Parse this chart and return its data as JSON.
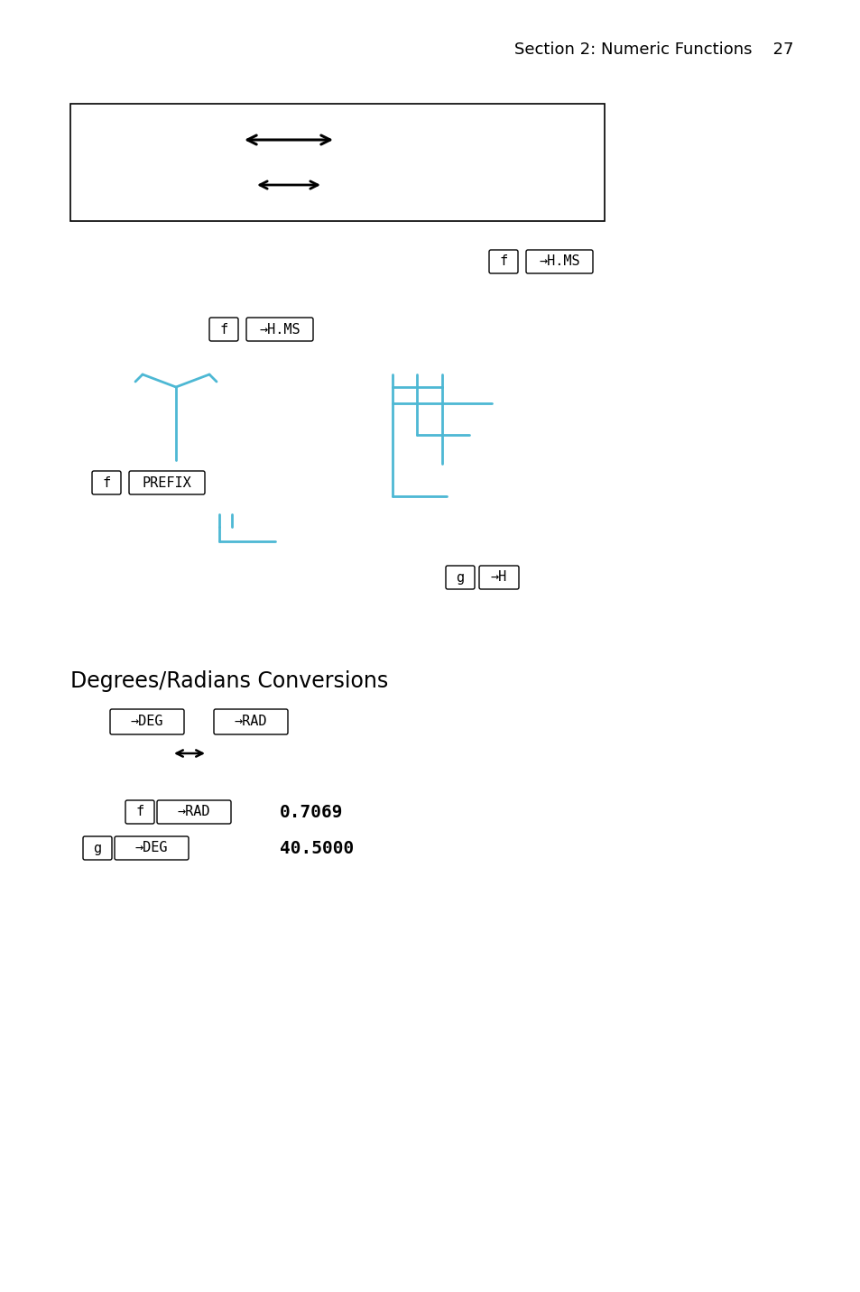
{
  "bg_color": "#ffffff",
  "page_header": "Section 2: Numeric Functions    27",
  "header_fontsize": 13,
  "cyan_color": "#4db8d4",
  "title_section": "Degrees/Radians Conversions",
  "title_fontsize": 17,
  "val1": "0.7069",
  "val2": "40.5000"
}
